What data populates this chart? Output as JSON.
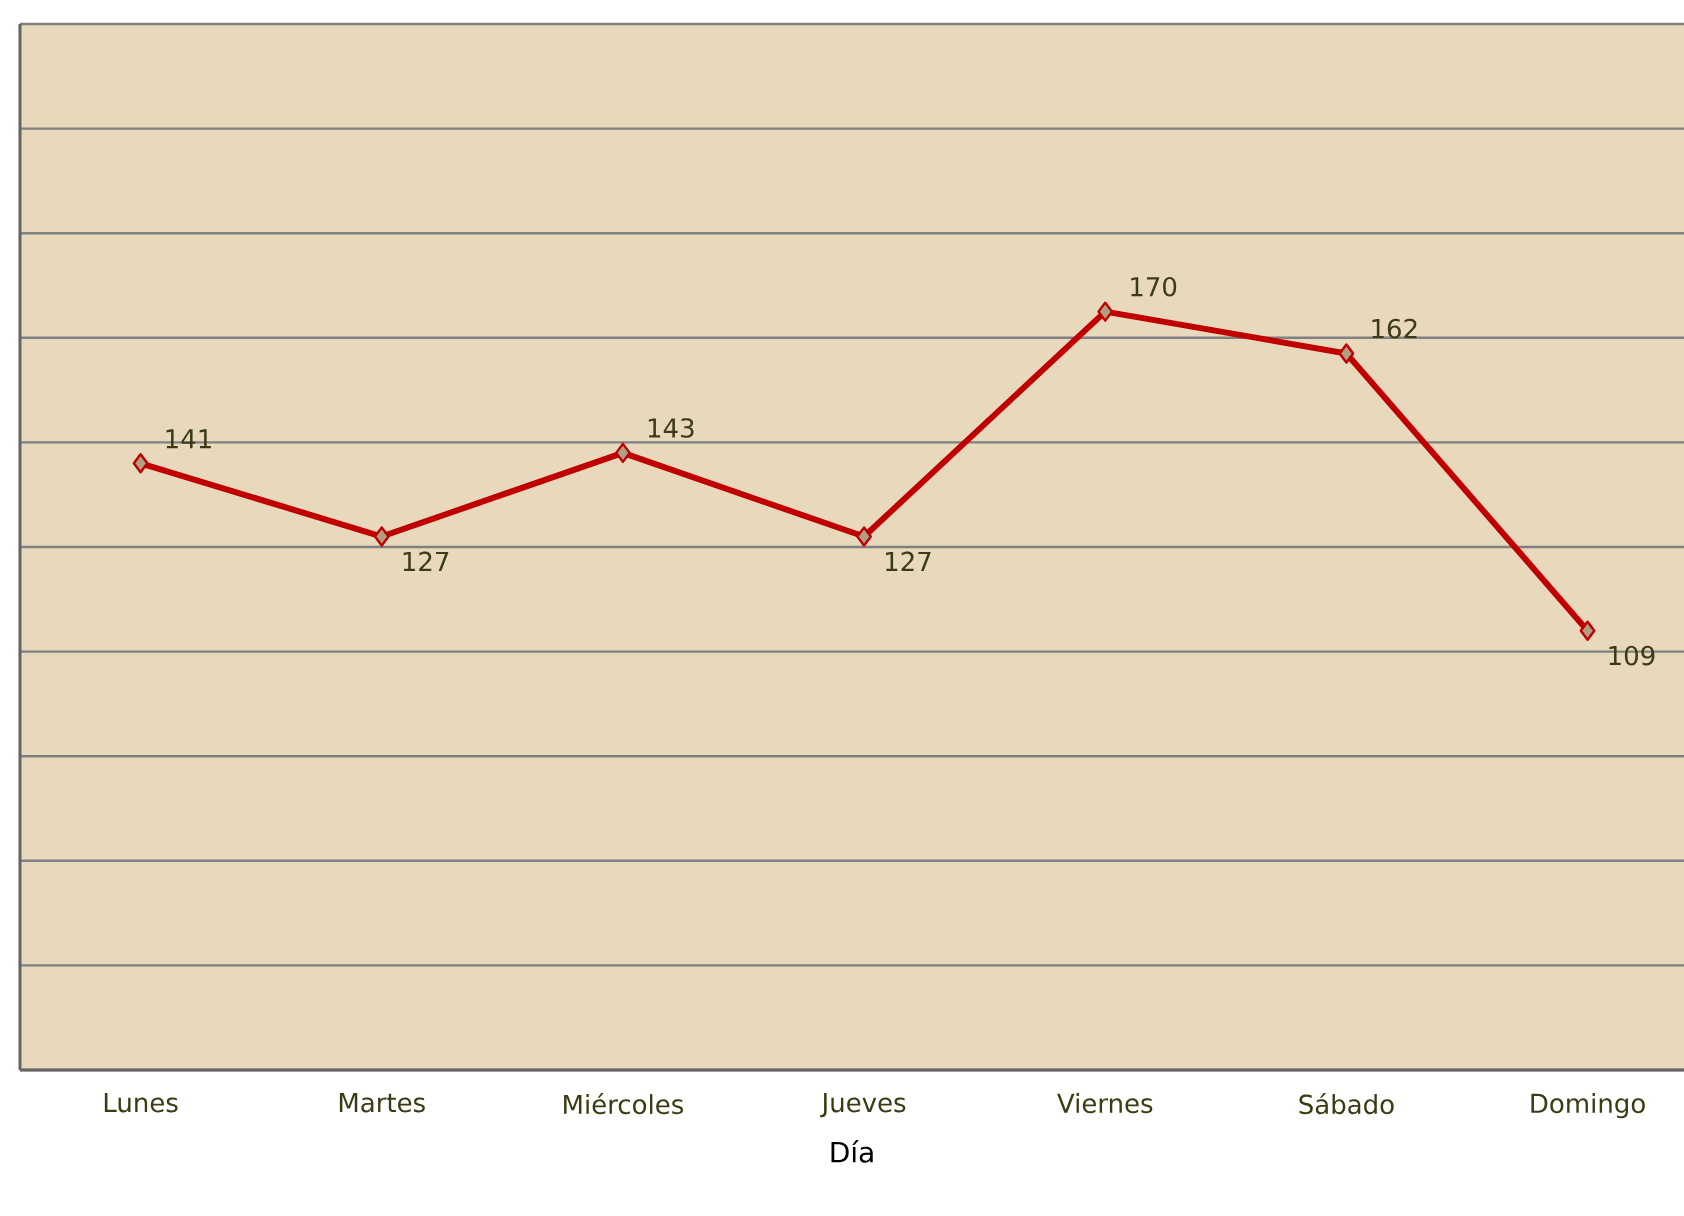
{
  "chart_data": {
    "type": "line",
    "xlabel": "Día",
    "categories": [
      "Lunes",
      "Martes",
      "Miércoles",
      "Jueves",
      "Viernes",
      "Sábado",
      "Domingo"
    ],
    "series": [
      {
        "color": "#c00000",
        "values": [
          141,
          127,
          143,
          127,
          170,
          162,
          109
        ]
      }
    ],
    "ylim": [
      25,
      225
    ],
    "yticks": [
      {
        "value": 25,
        "label": null
      },
      {
        "value": 45,
        "label": null
      },
      {
        "value": 65,
        "label": null
      },
      {
        "value": 85,
        "label": null
      },
      {
        "value": 105,
        "label": null
      },
      {
        "value": 125,
        "label": null
      },
      {
        "value": 145,
        "label": null
      },
      {
        "value": 165,
        "label": null
      },
      {
        "value": 185,
        "label": null
      },
      {
        "value": 205,
        "label": null
      },
      {
        "value": 225,
        "label": null
      }
    ],
    "grid": "y",
    "tick_labels": "x",
    "marker": "diamond",
    "line_style": "solid",
    "data_labels": true
  }
}
